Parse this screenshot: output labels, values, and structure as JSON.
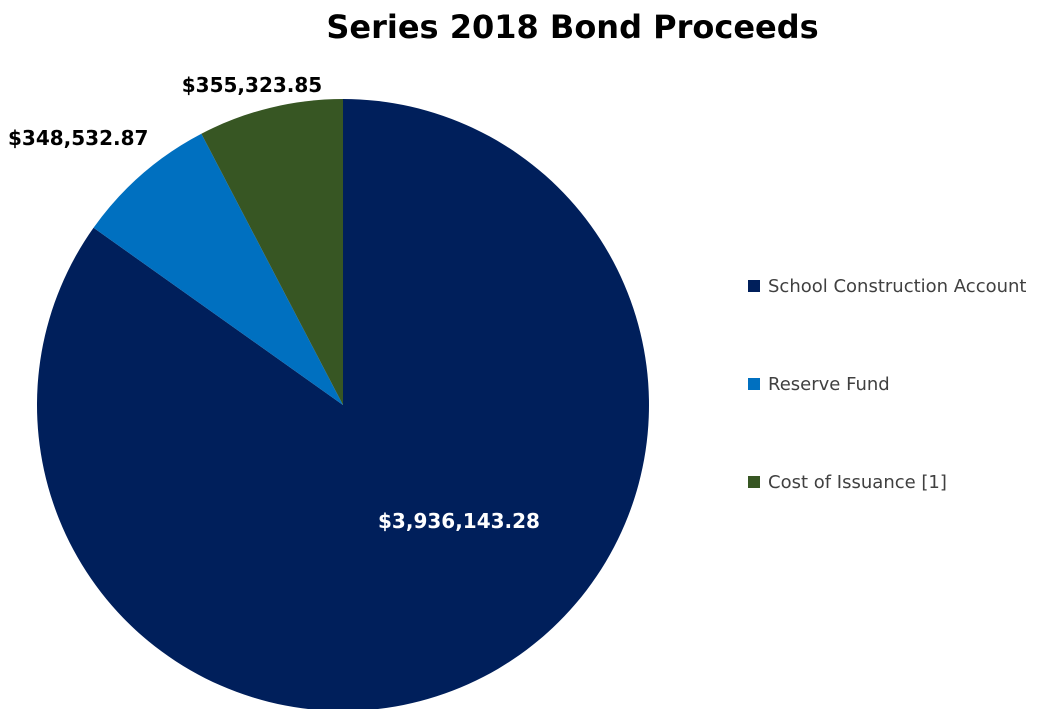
{
  "chart_data": {
    "type": "pie",
    "title": "Series 2018 Bond Proceeds",
    "slices": [
      {
        "label": "School Construction Account",
        "value": 3936143.28,
        "display": "$3,936,143.28",
        "color": "#001f5b",
        "label_color": "#ffffff"
      },
      {
        "label": "Reserve Fund",
        "value": 348532.87,
        "display": "$348,532.87",
        "color": "#0070c0",
        "label_color": "#000000"
      },
      {
        "label": "Cost of Issuance [1]",
        "value": 355323.85,
        "display": "$355,323.85",
        "color": "#375623",
        "label_color": "#000000"
      }
    ],
    "legend_position": "right"
  }
}
